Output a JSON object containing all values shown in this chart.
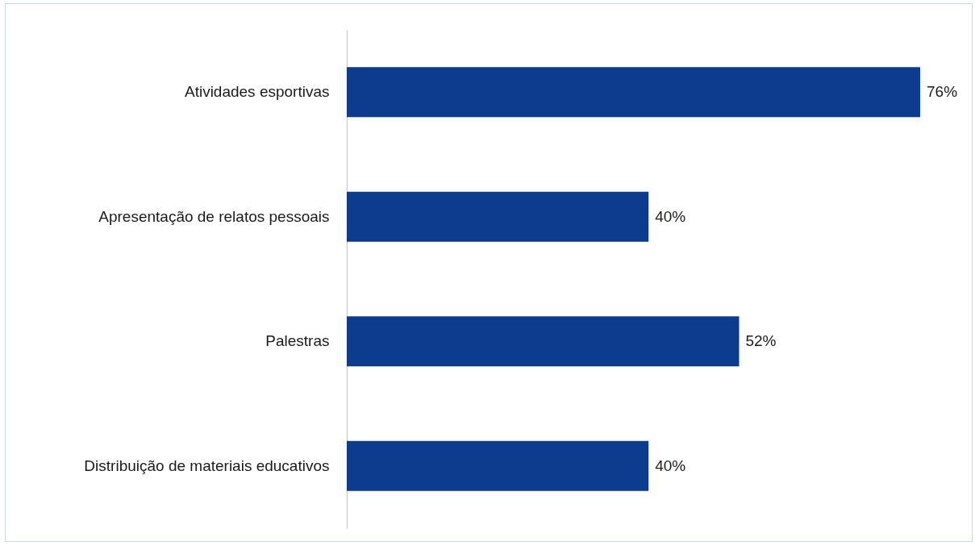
{
  "chart_data": {
    "type": "bar",
    "orientation": "horizontal",
    "categories": [
      "Atividades esportivas",
      "Apresentação de relatos pessoais",
      "Palestras",
      "Distribuição de materiais educativos"
    ],
    "values": [
      76,
      40,
      52,
      40
    ],
    "color": "#0d3b8e",
    "value_labels": [
      "76%",
      "40%",
      "52%",
      "40%"
    ],
    "grid": false
  }
}
